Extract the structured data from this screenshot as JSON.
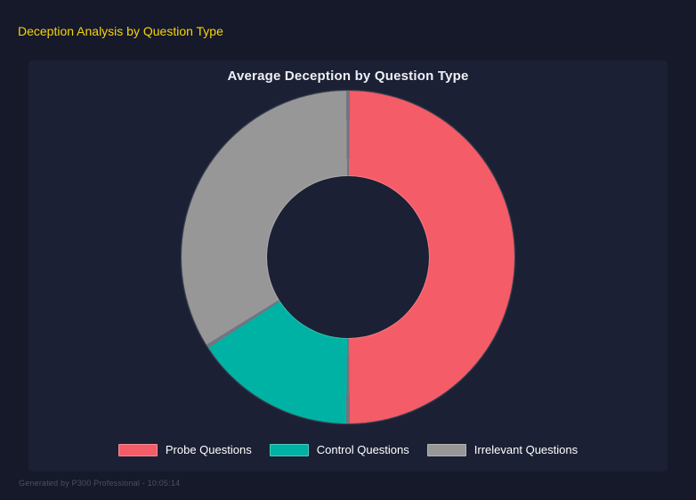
{
  "header": {
    "title": "Deception Analysis by Question Type",
    "title_color": "#f7d30f"
  },
  "chart_data": {
    "type": "pie",
    "subtype": "donut",
    "title": "Average Deception by Question Type",
    "segments": [
      {
        "label": "Probe Questions",
        "value_pct": 50,
        "color": "#f45c67"
      },
      {
        "label": "Control Questions",
        "value_pct": 16,
        "color": "#00b2a3"
      },
      {
        "label": "Irrelevant Questions",
        "value_pct": 34,
        "color": "#979798"
      }
    ],
    "start_angle_deg": 0,
    "direction": "clockwise",
    "hole_ratio": 0.49,
    "legend_position": "bottom",
    "data_labels": "none",
    "segment_border_color": "rgba(255,255,255,0.38)"
  },
  "footer": {
    "text": "Generated by P300 Professional - 10:05:14"
  },
  "colors": {
    "page_bg": "#151929",
    "panel_bg": "#1b2034",
    "chart_title_text": "#eef0f6",
    "legend_text": "#ffffff",
    "footer_text": "#4a5067"
  }
}
